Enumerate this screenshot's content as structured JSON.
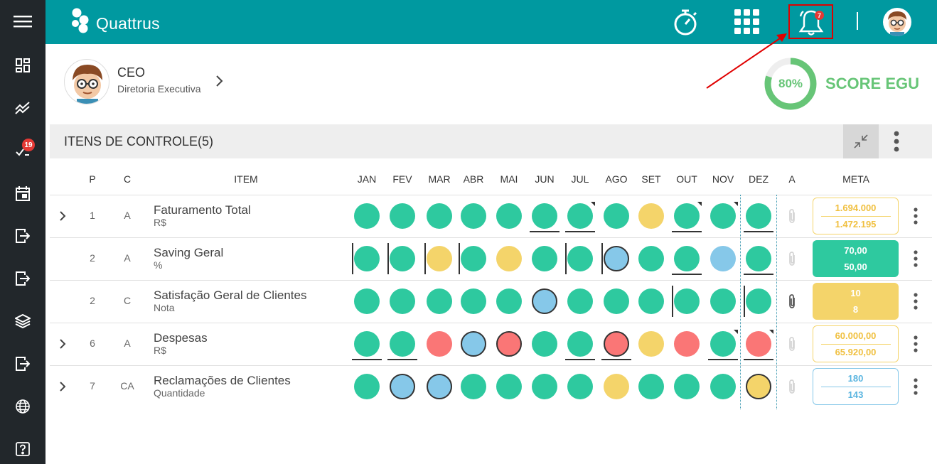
{
  "app": {
    "name": "Quattrus"
  },
  "colors": {
    "green": "#2ec99f",
    "yellow": "#f4d46a",
    "red": "#fa7676",
    "blue": "#86c8e9",
    "teal": "#0099a0",
    "score_green": "#67c577"
  },
  "sidebar": {
    "items": [
      {
        "icon": "menu-icon"
      },
      {
        "icon": "dashboard-icon"
      },
      {
        "icon": "trending-icon"
      },
      {
        "icon": "checklist-icon",
        "badge": "19"
      },
      {
        "icon": "calendar-icon"
      },
      {
        "icon": "login-icon"
      },
      {
        "icon": "logout-icon"
      },
      {
        "icon": "layers-icon"
      },
      {
        "icon": "exit-icon"
      },
      {
        "icon": "globe-icon"
      },
      {
        "icon": "help-icon"
      }
    ]
  },
  "topbar": {
    "notifications_count": "7"
  },
  "profile": {
    "role": "CEO",
    "department": "Diretoria Executiva"
  },
  "score": {
    "value": 80,
    "label_pct": "80%",
    "label": "SCORE EGU"
  },
  "section": {
    "title": "ITENS DE CONTROLE(5)"
  },
  "table": {
    "headers": {
      "p": "P",
      "c": "C",
      "item": "ITEM",
      "a": "A",
      "meta": "META"
    },
    "months": [
      "JAN",
      "FEV",
      "MAR",
      "ABR",
      "MAI",
      "JUN",
      "JUL",
      "AGO",
      "SET",
      "OUT",
      "NOV",
      "DEZ"
    ],
    "rows": [
      {
        "p": "1",
        "c": "A",
        "name": "Faturamento Total",
        "unit": "R$",
        "expandable": true,
        "statuses": [
          "green",
          "green",
          "green",
          "green",
          "green",
          "green",
          "green",
          "green",
          "yellow",
          "green",
          "green",
          "green"
        ],
        "ring": [],
        "under": [
          5,
          6,
          9,
          11
        ],
        "left": [],
        "corner": [
          6,
          9,
          10
        ],
        "clip_active": false,
        "meta": {
          "style": "outline-yellow",
          "planned": "1.694.000",
          "actual": "1.472.195"
        }
      },
      {
        "p": "2",
        "c": "A",
        "name": "Saving Geral",
        "unit": "%",
        "expandable": false,
        "statuses": [
          "green",
          "green",
          "yellow",
          "green",
          "yellow",
          "green",
          "green",
          "blue",
          "green",
          "green",
          "blue",
          "green"
        ],
        "ring": [
          7
        ],
        "under": [
          9,
          11
        ],
        "left": [
          0,
          1,
          2,
          3,
          6,
          7
        ],
        "corner": [],
        "clip_active": false,
        "meta": {
          "style": "filled-green",
          "planned": "70,00",
          "actual": "50,00"
        }
      },
      {
        "p": "2",
        "c": "C",
        "name": "Satisfação Geral de Clientes",
        "unit": "Nota",
        "expandable": false,
        "statuses": [
          "green",
          "green",
          "green",
          "green",
          "green",
          "blue",
          "green",
          "green",
          "green",
          "green",
          "green",
          "green"
        ],
        "ring": [
          5
        ],
        "under": [],
        "left": [
          9,
          11
        ],
        "corner": [],
        "clip_active": true,
        "meta": {
          "style": "filled-yellow",
          "planned": "10",
          "actual": "8"
        }
      },
      {
        "p": "6",
        "c": "A",
        "name": "Despesas",
        "unit": "R$",
        "expandable": true,
        "statuses": [
          "green",
          "green",
          "red",
          "blue",
          "red",
          "green",
          "green",
          "red",
          "yellow",
          "red",
          "green",
          "red"
        ],
        "ring": [
          3,
          4,
          7
        ],
        "under": [
          0,
          1,
          6,
          7,
          10,
          11
        ],
        "left": [],
        "corner": [
          10,
          11
        ],
        "clip_active": false,
        "meta": {
          "style": "outline-yellow",
          "planned": "60.000,00",
          "actual": "65.920,00"
        }
      },
      {
        "p": "7",
        "c": "CA",
        "name": "Reclamações de Clientes",
        "unit": "Quantidade",
        "expandable": true,
        "statuses": [
          "green",
          "blue",
          "blue",
          "green",
          "green",
          "green",
          "green",
          "yellow",
          "green",
          "green",
          "green",
          "yellow"
        ],
        "ring": [
          1,
          2,
          11
        ],
        "under": [],
        "left": [],
        "corner": [],
        "clip_active": false,
        "meta": {
          "style": "outline-blue",
          "planned": "180",
          "actual": "143"
        }
      }
    ]
  }
}
